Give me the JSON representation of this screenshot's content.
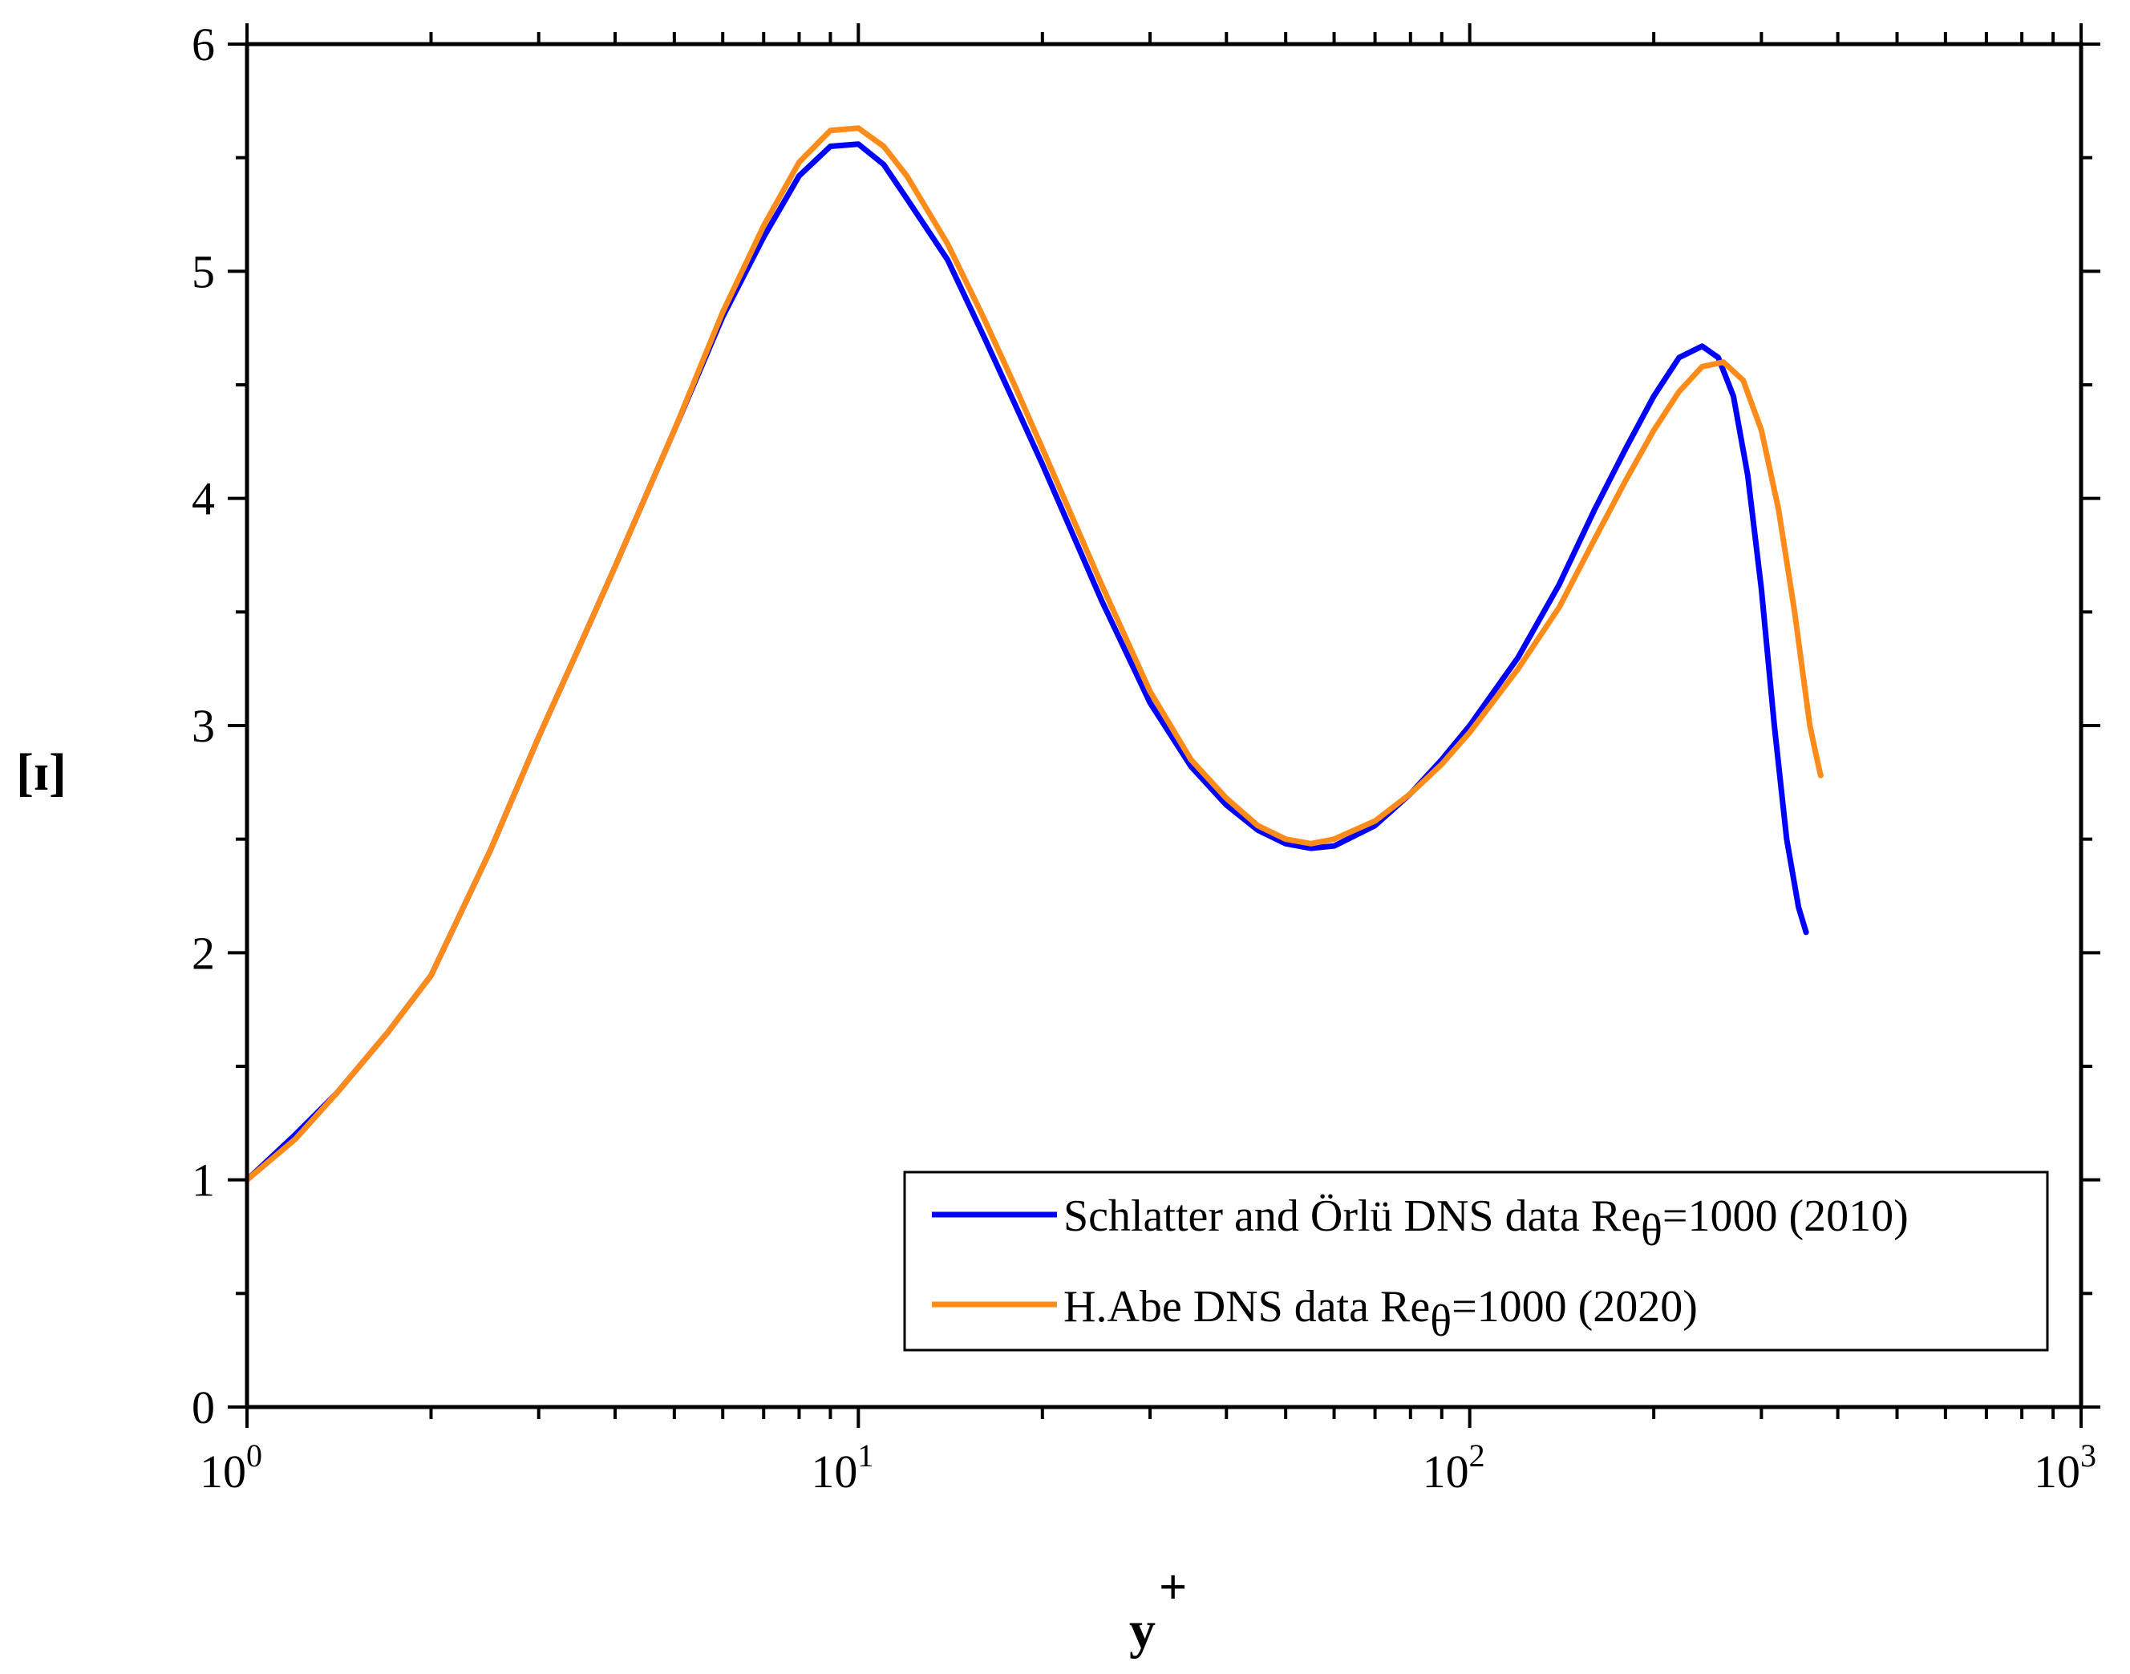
{
  "chart_data": {
    "type": "line",
    "title": "",
    "xlabel": "y",
    "xlabel_sup": "+",
    "ylabel": "[ɪ]",
    "xscale": "log",
    "xlim": [
      1,
      1000
    ],
    "ylim": [
      0,
      6
    ],
    "grid": false,
    "legend_position": "bottom-right",
    "x_ticks": [
      {
        "base": "10",
        "exp": "0",
        "value": 1
      },
      {
        "base": "10",
        "exp": "1",
        "value": 10
      },
      {
        "base": "10",
        "exp": "2",
        "value": 100
      },
      {
        "base": "10",
        "exp": "3",
        "value": 1000
      }
    ],
    "y_ticks": [
      "0",
      "1",
      "2",
      "3",
      "4",
      "5",
      "6"
    ],
    "series": [
      {
        "name": "Schlatter and Örlü DNS data Re",
        "name_sub": "θ",
        "name_suffix": "=1000 (2010)",
        "color": "#0000ff",
        "x": [
          1.0,
          1.2,
          1.4,
          1.7,
          2.0,
          2.5,
          3.0,
          3.5,
          4.0,
          5.0,
          6.0,
          7.0,
          8.0,
          9.0,
          10.0,
          11.0,
          12.0,
          14.0,
          16.0,
          18.0,
          20.0,
          25.0,
          30.0,
          35.0,
          40.0,
          45.0,
          50.0,
          55.0,
          60.0,
          70.0,
          80.0,
          90.0,
          100.0,
          120.0,
          140.0,
          160.0,
          180.0,
          200.0,
          220.0,
          240.0,
          255.0,
          270.0,
          285.0,
          300.0,
          315.0,
          330.0,
          345.0,
          355.0
        ],
        "y": [
          1.0,
          1.2,
          1.38,
          1.65,
          1.9,
          2.45,
          2.95,
          3.35,
          3.7,
          4.3,
          4.8,
          5.15,
          5.42,
          5.55,
          5.56,
          5.47,
          5.32,
          5.05,
          4.72,
          4.42,
          4.15,
          3.55,
          3.1,
          2.82,
          2.65,
          2.54,
          2.48,
          2.46,
          2.47,
          2.56,
          2.7,
          2.85,
          3.0,
          3.3,
          3.62,
          3.95,
          4.22,
          4.45,
          4.62,
          4.67,
          4.62,
          4.45,
          4.1,
          3.6,
          3.0,
          2.5,
          2.2,
          2.09
        ]
      },
      {
        "name": "H.Abe DNS data Re",
        "name_sub": "θ",
        "name_suffix": "=1000 (2020)",
        "color": "#ff8c1a",
        "x": [
          1.0,
          1.2,
          1.4,
          1.7,
          2.0,
          2.5,
          3.0,
          3.5,
          4.0,
          5.0,
          6.0,
          7.0,
          8.0,
          9.0,
          10.0,
          11.0,
          12.0,
          14.0,
          16.0,
          18.0,
          20.0,
          25.0,
          30.0,
          35.0,
          40.0,
          45.0,
          50.0,
          55.0,
          60.0,
          70.0,
          80.0,
          90.0,
          100.0,
          120.0,
          140.0,
          160.0,
          180.0,
          200.0,
          220.0,
          240.0,
          260.0,
          280.0,
          300.0,
          320.0,
          340.0,
          360.0,
          370.0,
          375.0
        ],
        "y": [
          1.0,
          1.18,
          1.38,
          1.65,
          1.9,
          2.45,
          2.95,
          3.35,
          3.7,
          4.3,
          4.82,
          5.2,
          5.48,
          5.62,
          5.63,
          5.55,
          5.42,
          5.12,
          4.8,
          4.5,
          4.22,
          3.62,
          3.15,
          2.85,
          2.68,
          2.56,
          2.5,
          2.48,
          2.5,
          2.58,
          2.7,
          2.83,
          2.97,
          3.25,
          3.52,
          3.82,
          4.08,
          4.3,
          4.47,
          4.58,
          4.6,
          4.52,
          4.3,
          3.95,
          3.5,
          3.0,
          2.85,
          2.78
        ]
      }
    ]
  }
}
